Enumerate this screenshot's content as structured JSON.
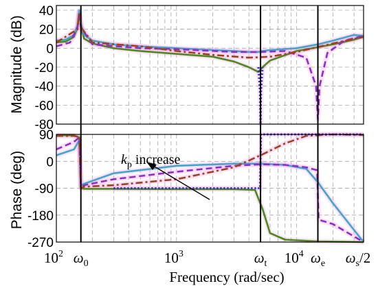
{
  "chart_data": [
    {
      "type": "line",
      "id": "magnitude",
      "ylabel": "Magnitude (dB)",
      "ylim": [
        -80,
        45
      ],
      "yticks": [
        "40",
        "20",
        "0",
        "-20",
        "-40",
        "-60",
        "-80"
      ],
      "ytick_values": [
        40,
        20,
        0,
        -20,
        -40,
        -60,
        -80
      ],
      "xscale": "log",
      "grid": true,
      "colors": {
        "green": "#4a8c1c",
        "cyan": "#3fa7c9",
        "purple": "#8b2fc9",
        "brown": "#a0401c",
        "blue": "#1f2fc9",
        "pink": "#f4a6e6"
      },
      "series": [
        {
          "color_key": "green",
          "style": "solid",
          "x": [
            100,
            120,
            140,
            150,
            155,
            160,
            170,
            200,
            300,
            500,
            1000,
            2000,
            3000,
            4000,
            4800,
            5200,
            6000,
            10000,
            15000,
            20000,
            30000,
            36000
          ],
          "y": [
            6,
            7,
            12,
            22,
            38,
            24,
            10,
            5,
            0,
            -3,
            -6,
            -9,
            -14,
            -20,
            -25,
            -20,
            -13,
            -3,
            1,
            4,
            9,
            12
          ]
        },
        {
          "color_key": "cyan",
          "style": "solid",
          "x": [
            100,
            120,
            140,
            150,
            155,
            160,
            170,
            200,
            300,
            500,
            1000,
            2000,
            3000,
            4000,
            4800,
            5200,
            6000,
            10000,
            15000,
            20000,
            30000,
            36000
          ],
          "y": [
            8,
            9,
            14,
            24,
            40,
            26,
            14,
            8,
            4,
            2,
            0,
            -2,
            -3,
            -4,
            -4,
            -3,
            -2,
            0,
            4,
            8,
            14,
            13
          ]
        },
        {
          "color_key": "purple",
          "style": "dashed",
          "x": [
            100,
            130,
            150,
            155,
            160,
            200,
            500,
            1000,
            3000,
            5000,
            8000,
            12000,
            14500,
            15000,
            15500,
            18000,
            25000,
            36000
          ],
          "y": [
            2,
            6,
            22,
            38,
            22,
            4,
            0,
            -1,
            -4,
            -4,
            -3,
            -10,
            -40,
            -75,
            -40,
            -5,
            8,
            13
          ]
        },
        {
          "color_key": "brown",
          "style": "dashdot",
          "x": [
            100,
            150,
            155,
            160,
            200,
            500,
            1000,
            2000,
            4000,
            6000,
            10000,
            20000,
            36000
          ],
          "y": [
            6,
            20,
            38,
            22,
            6,
            2,
            -3,
            -7,
            -10,
            -9,
            -4,
            5,
            12
          ]
        },
        {
          "color_key": "blue",
          "style": "dotted",
          "x": [
            4800,
            4950,
            5000,
            5050,
            5200
          ],
          "y": [
            -20,
            -45,
            -80,
            -45,
            -20
          ]
        }
      ],
      "markers": [
        {
          "label": "ω",
          "sub": "0",
          "x": 160
        },
        {
          "label": "ω",
          "sub": "t",
          "x": 5000
        },
        {
          "label": "ω",
          "sub": "e",
          "x": 15000
        }
      ]
    },
    {
      "type": "line",
      "id": "phase",
      "ylabel": "Phase (deg)",
      "xlabel": "Frequency (rad/sec)",
      "ylim": [
        -270,
        90
      ],
      "yticks": [
        "90",
        "0",
        "-90",
        "-180",
        "-270"
      ],
      "ytick_values": [
        90,
        0,
        -90,
        -180,
        -270
      ],
      "xscale": "log",
      "xticks": [
        {
          "base": "10",
          "exp": "2",
          "x": 100
        },
        {
          "base": "10",
          "exp": "3",
          "x": 1000
        },
        {
          "base": "10",
          "exp": "4",
          "x": 10000
        }
      ],
      "xend_label": {
        "label": "ω",
        "sub": "s",
        "suffix": "/2",
        "x": 36000
      },
      "xlim": [
        100,
        36000
      ],
      "grid": true,
      "annotation": {
        "text_k": "k",
        "text_sub": "p",
        "text_rest": " increase"
      },
      "series": [
        {
          "color_key": "green",
          "style": "solid",
          "x": [
            100,
            140,
            155,
            160,
            170,
            300,
            1000,
            3000,
            4500,
            5200,
            6000,
            8000,
            15000,
            36000
          ],
          "y": [
            88,
            86,
            80,
            -90,
            -92,
            -92,
            -93,
            -93,
            -96,
            -160,
            -240,
            -262,
            -268,
            -270
          ]
        },
        {
          "color_key": "cyan",
          "style": "solid",
          "x": [
            100,
            140,
            155,
            160,
            170,
            300,
            1000,
            3000,
            5000,
            8000,
            12000,
            15000,
            20000,
            36000
          ],
          "y": [
            20,
            40,
            70,
            -80,
            -75,
            -40,
            -15,
            -8,
            -8,
            -12,
            -25,
            -70,
            -140,
            -270
          ]
        },
        {
          "color_key": "purple",
          "style": "dashed",
          "x": [
            100,
            140,
            155,
            160,
            170,
            300,
            1000,
            3000,
            5000,
            8000,
            12000,
            14800,
            15200,
            20000,
            36000
          ],
          "y": [
            40,
            65,
            80,
            -85,
            -80,
            -60,
            -35,
            -15,
            -10,
            -12,
            -20,
            -30,
            -195,
            -210,
            -270
          ]
        },
        {
          "color_key": "brown",
          "style": "dashdot",
          "x": [
            100,
            140,
            155,
            160,
            170,
            300,
            1000,
            3000,
            5000,
            8000,
            12000,
            20000,
            36000
          ],
          "y": [
            85,
            85,
            82,
            -90,
            -85,
            -80,
            -60,
            -20,
            20,
            60,
            85,
            90,
            88
          ]
        },
        {
          "color_key": "blue",
          "style": "dotted",
          "x": [
            300,
            1000,
            3000,
            4950,
            5050,
            10000,
            20000,
            36000
          ],
          "y": [
            -90,
            -90,
            -90,
            -90,
            90,
            90,
            90,
            90
          ]
        }
      ]
    }
  ]
}
